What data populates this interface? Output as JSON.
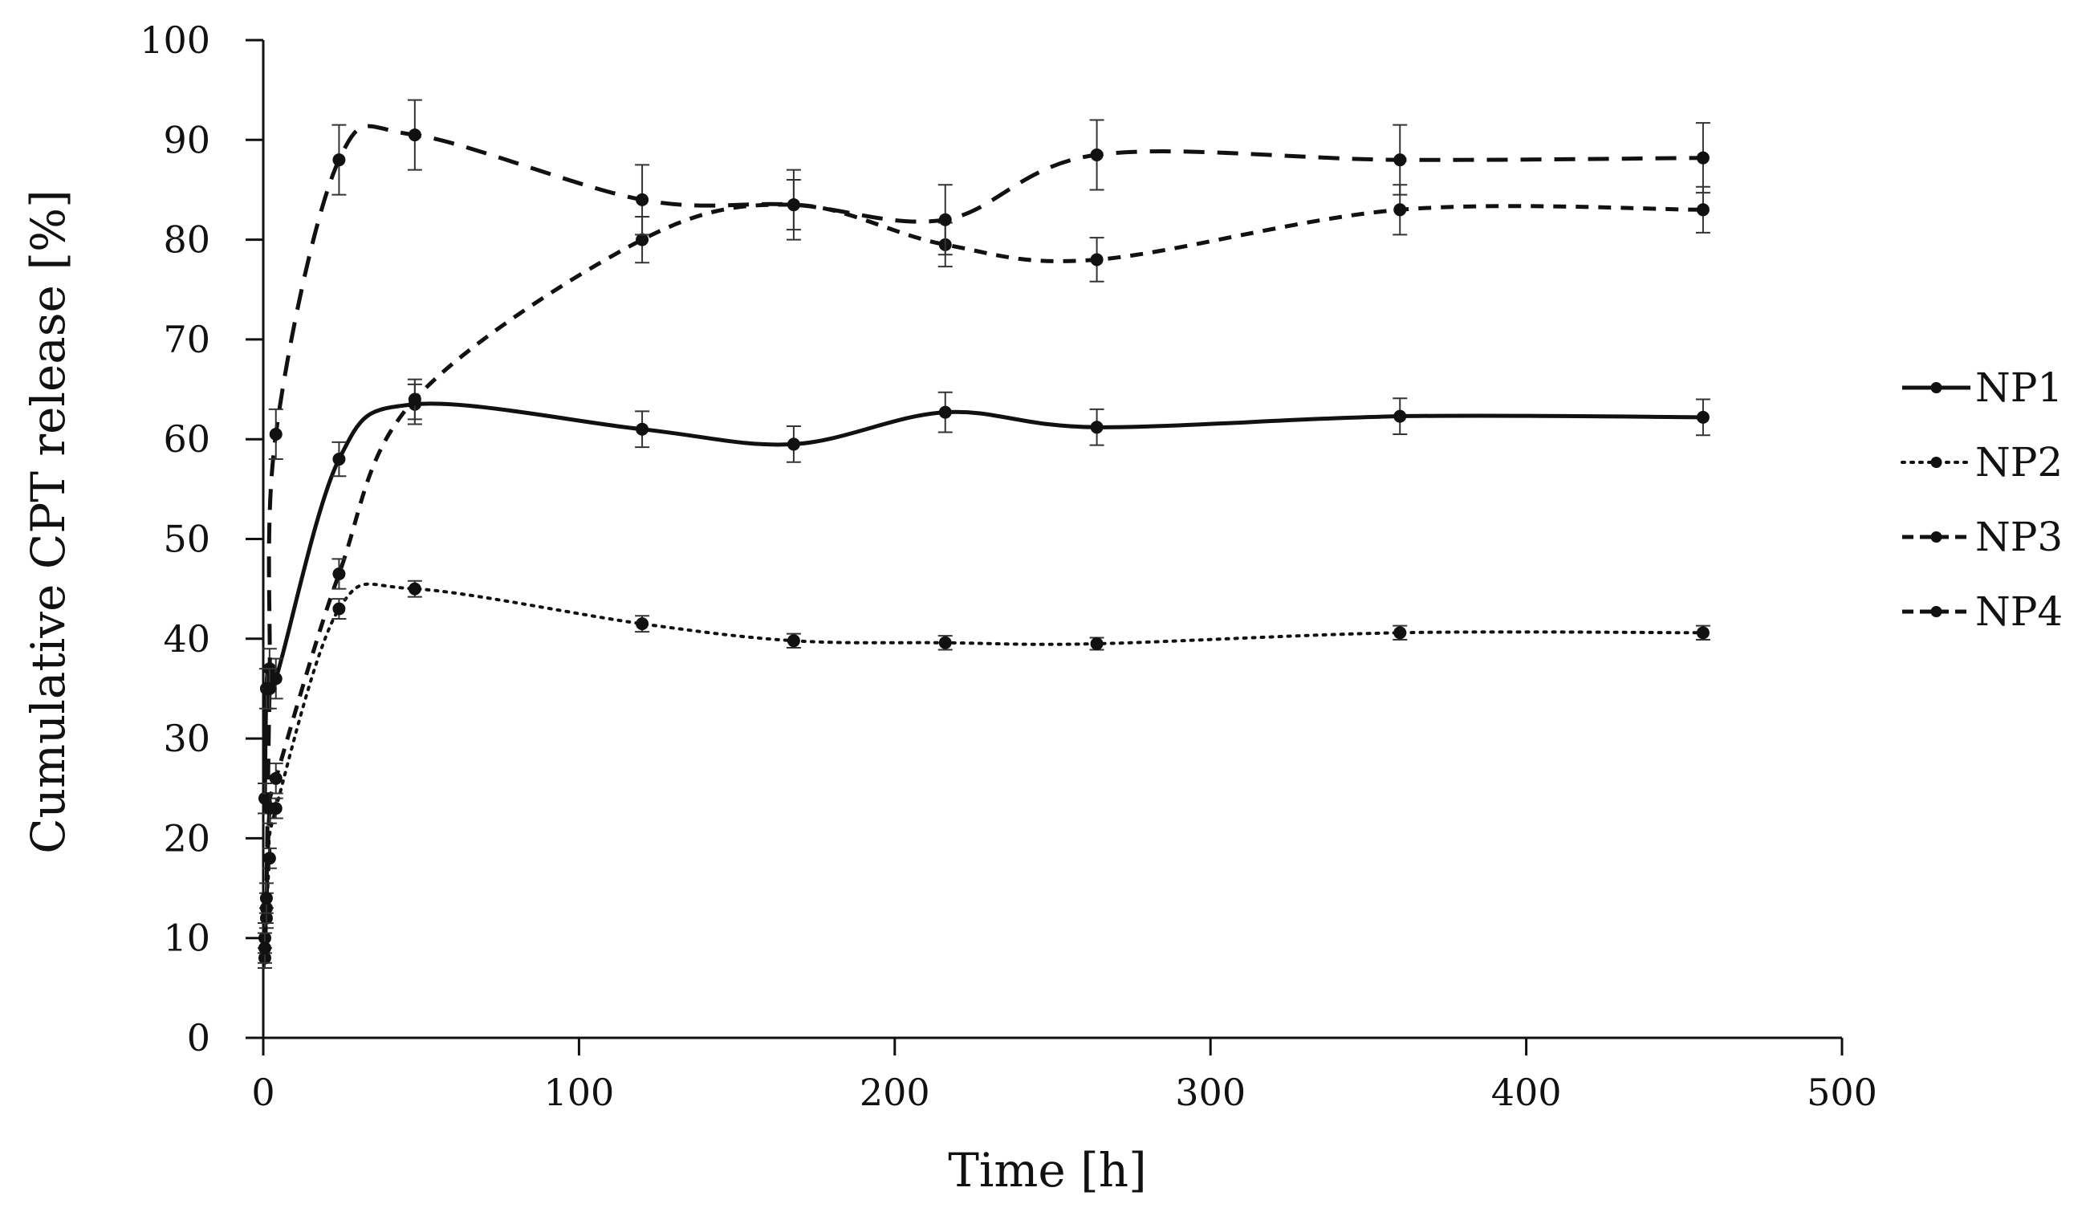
{
  "chart_data": {
    "type": "line",
    "title": "",
    "xlabel": "Time [h]",
    "ylabel": "Cumulative CPT release [%]",
    "xlim": [
      0,
      500
    ],
    "ylim": [
      0,
      100
    ],
    "xticks": [
      0,
      100,
      200,
      300,
      400,
      500
    ],
    "yticks": [
      0,
      10,
      20,
      30,
      40,
      50,
      60,
      70,
      80,
      90,
      100
    ],
    "grid": false,
    "legend_position": "right",
    "series": [
      {
        "name": "NP1",
        "style": "solid",
        "x": [
          0.5,
          1,
          2,
          4,
          24,
          48,
          120,
          168,
          216,
          264,
          360,
          456
        ],
        "y": [
          24,
          35,
          37,
          36,
          58,
          63.5,
          61,
          59.5,
          62.7,
          61.2,
          62.3,
          62.2
        ],
        "err": [
          1.5,
          2,
          2,
          2,
          1.7,
          2,
          1.8,
          1.8,
          2,
          1.8,
          1.8,
          1.8
        ]
      },
      {
        "name": "NP2",
        "style": "dotted",
        "x": [
          0.5,
          1,
          2,
          4,
          24,
          48,
          120,
          168,
          216,
          264,
          360,
          456
        ],
        "y": [
          8,
          12,
          18,
          23,
          43,
          45,
          41.5,
          39.8,
          39.6,
          39.5,
          40.6,
          40.6
        ],
        "err": [
          1,
          1,
          1,
          1,
          1,
          0.8,
          0.8,
          0.7,
          0.7,
          0.6,
          0.7,
          0.7
        ]
      },
      {
        "name": "NP3",
        "style": "dashed",
        "x": [
          0.5,
          1,
          2,
          4,
          24,
          48,
          120,
          168,
          216,
          264,
          360,
          456
        ],
        "y": [
          10,
          13,
          23,
          26,
          46.5,
          64,
          80,
          83.5,
          79.5,
          78,
          83,
          83
        ],
        "err": [
          1.5,
          1.5,
          1.5,
          1.5,
          1.5,
          2,
          2.3,
          2.5,
          2.2,
          2.2,
          2.5,
          2.3
        ]
      },
      {
        "name": "NP4",
        "style": "longdash",
        "x": [
          0.5,
          1,
          2,
          4,
          24,
          48,
          120,
          168,
          216,
          264,
          360,
          456
        ],
        "y": [
          9,
          14,
          35,
          60.5,
          88,
          90.5,
          84,
          83.5,
          82,
          88.5,
          88,
          88.2
        ],
        "err": [
          1.5,
          1.5,
          2,
          2.5,
          3.5,
          3.5,
          3.5,
          3.5,
          3.5,
          3.5,
          3.5,
          3.5
        ]
      }
    ]
  }
}
